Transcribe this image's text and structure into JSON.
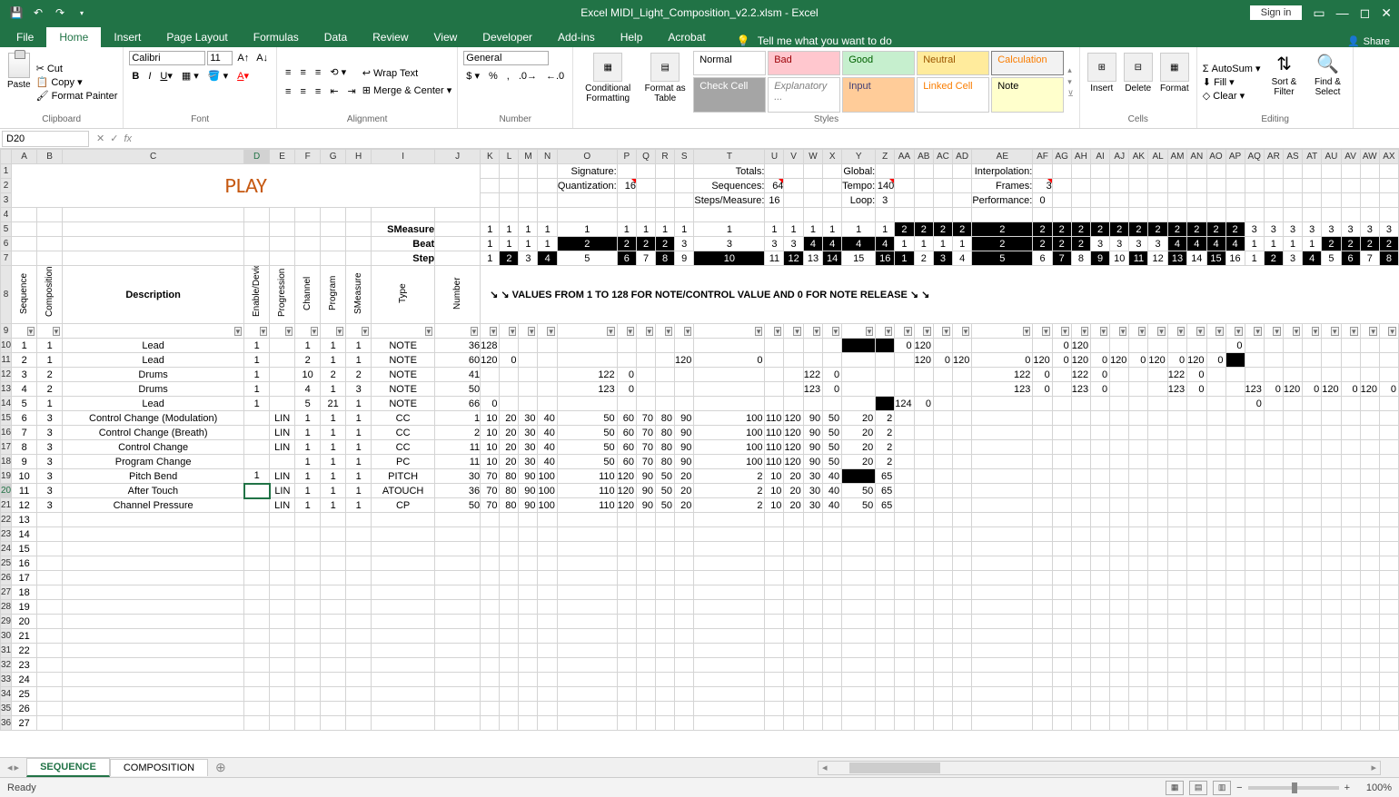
{
  "title": "Excel MIDI_Light_Composition_v2.2.xlsm - Excel",
  "signin": "Sign in",
  "tabs": {
    "file": "File",
    "home": "Home",
    "insert": "Insert",
    "page": "Page Layout",
    "formulas": "Formulas",
    "data": "Data",
    "review": "Review",
    "view": "View",
    "developer": "Developer",
    "addins": "Add-ins",
    "help": "Help",
    "acrobat": "Acrobat"
  },
  "tellme": "Tell me what you want to do",
  "share": "Share",
  "ribbon": {
    "clipboard": {
      "paste": "Paste",
      "cut": "Cut",
      "copy": "Copy",
      "painter": "Format Painter",
      "label": "Clipboard"
    },
    "font": {
      "name": "Calibri",
      "size": "11",
      "label": "Font"
    },
    "alignment": {
      "wrap": "Wrap Text",
      "merge": "Merge & Center",
      "label": "Alignment"
    },
    "number": {
      "format": "General",
      "label": "Number"
    },
    "styles": {
      "cond": "Conditional Formatting",
      "formatTable": "Format as Table",
      "cells": [
        "Normal",
        "Bad",
        "Good",
        "Neutral",
        "Calculation",
        "Check Cell",
        "Explanatory ...",
        "Input",
        "Linked Cell",
        "Note"
      ],
      "label": "Styles"
    },
    "cells": {
      "insert": "Insert",
      "delete": "Delete",
      "format": "Format",
      "label": "Cells"
    },
    "editing": {
      "autosum": "AutoSum",
      "fill": "Fill",
      "clear": "Clear",
      "sort": "Sort & Filter",
      "find": "Find & Select",
      "label": "Editing"
    }
  },
  "namebox": "D20",
  "columns": [
    "A",
    "B",
    "C",
    "D",
    "E",
    "F",
    "G",
    "H",
    "I",
    "J",
    "K",
    "L",
    "M",
    "N",
    "O",
    "P",
    "Q",
    "R",
    "S",
    "T",
    "U",
    "V",
    "W",
    "X",
    "Y",
    "Z",
    "AA",
    "AB",
    "AC",
    "AD",
    "AE",
    "AF",
    "AG",
    "AH",
    "AI",
    "AJ",
    "AK",
    "AL",
    "AM",
    "AN",
    "AO",
    "AP",
    "AQ",
    "AR",
    "AS",
    "AT",
    "AU",
    "AV",
    "AW",
    "AX",
    "AY",
    "AZ",
    "BA",
    "BB",
    "BC",
    "BD",
    "BE"
  ],
  "col_widths": {
    "A": 28,
    "B": 28,
    "C": 200,
    "D": 28,
    "E": 28,
    "F": 28,
    "G": 28,
    "H": 28,
    "I": 70,
    "J": 50,
    "def": 21
  },
  "header_labels": {
    "signature": "Signature:",
    "quantization": "Quantization:",
    "quantization_v": "16",
    "stepsmeasure": "Steps/Measure:",
    "stepsmeasure_v": "16",
    "totals": "Totals:",
    "sequences": "Sequences:",
    "sequences_v": "64",
    "global": "Global:",
    "tempo": "Tempo:",
    "tempo_v": "140",
    "loop": "Loop:",
    "loop_v": "3",
    "interpolation": "Interpolation:",
    "frames": "Frames:",
    "frames_v": "3",
    "performance": "Performance:",
    "performance_v": "0"
  },
  "row_hdrs": {
    "smeasure": "SMeasure",
    "beat": "Beat",
    "step": "Step"
  },
  "smeasure_vals": [
    1,
    1,
    1,
    1,
    1,
    1,
    1,
    1,
    1,
    1,
    1,
    1,
    1,
    1,
    1,
    1,
    2,
    2,
    2,
    2,
    2,
    2,
    2,
    2,
    2,
    2,
    2,
    2,
    2,
    2,
    2,
    2,
    3,
    3,
    3,
    3,
    3,
    3,
    3,
    3,
    3,
    3,
    3,
    3,
    3,
    3,
    3
  ],
  "beat_vals": [
    1,
    1,
    1,
    1,
    2,
    2,
    2,
    2,
    3,
    3,
    3,
    3,
    4,
    4,
    4,
    4,
    1,
    1,
    1,
    1,
    2,
    2,
    2,
    2,
    3,
    3,
    3,
    3,
    4,
    4,
    4,
    4,
    1,
    1,
    1,
    1,
    2,
    2,
    2,
    2,
    3,
    3,
    3,
    3,
    4,
    4,
    4
  ],
  "step_vals": [
    1,
    2,
    3,
    4,
    5,
    6,
    7,
    8,
    9,
    10,
    11,
    12,
    13,
    14,
    15,
    16,
    1,
    2,
    3,
    4,
    5,
    6,
    7,
    8,
    9,
    10,
    11,
    12,
    13,
    14,
    15,
    16,
    1,
    2,
    3,
    4,
    5,
    6,
    7,
    8,
    9,
    10,
    11,
    12,
    13,
    14,
    15
  ],
  "smeasure_black": [
    16,
    17,
    18,
    19,
    20,
    21,
    22,
    23,
    24,
    25,
    26,
    27,
    28,
    29,
    30,
    31
  ],
  "beat_black": [
    4,
    5,
    6,
    7,
    12,
    13,
    14,
    15,
    20,
    21,
    22,
    23,
    28,
    29,
    30,
    31,
    36,
    37,
    38,
    39,
    44,
    45,
    46
  ],
  "step_black": [
    1,
    3,
    5,
    7,
    9,
    11,
    13,
    15,
    16,
    18,
    20,
    22,
    24,
    26,
    28,
    30,
    33,
    35,
    37,
    39,
    41,
    43,
    45
  ],
  "col_headers": {
    "sequence": "Sequence",
    "composition": "Composition",
    "description": "Description",
    "enable": "Enable/Device",
    "progtype": "Progression Type",
    "channel": "Channel",
    "program": "Program",
    "smeasure": "SMeasure",
    "type": "Type",
    "number": "Number"
  },
  "values_hint": "↘ ↘ VALUES FROM 1 TO 128 FOR NOTE/CONTROL VALUE AND 0 FOR NOTE RELEASE ↘ ↘",
  "play": "PLAY",
  "data_rows": [
    {
      "r": 10,
      "a": 1,
      "b": 1,
      "c": "Lead",
      "d": 1,
      "e": "",
      "f": 1,
      "g": 1,
      "h": 1,
      "i": "NOTE",
      "j": 36,
      "vals": {
        "0": "128",
        "15": "",
        "16": "0",
        "17": "120",
        "22": "0",
        "23": "120",
        "31": "0"
      }
    },
    {
      "r": 11,
      "a": 2,
      "b": 1,
      "c": "Lead",
      "d": 1,
      "e": "",
      "f": 2,
      "g": 1,
      "h": 1,
      "i": "NOTE",
      "j": 60,
      "vals": {
        "0": "120",
        "1": "0",
        "8": "120",
        "9": "0",
        "17": "120",
        "18": "0",
        "19": "120",
        "20": "0",
        "21": "120",
        "22": "0",
        "23": "120",
        "24": "0",
        "25": "120",
        "26": "0",
        "27": "120",
        "28": "0",
        "29": "120",
        "30": "0",
        "31": ""
      }
    },
    {
      "r": 12,
      "a": 3,
      "b": 2,
      "c": "Drums",
      "d": 1,
      "e": "",
      "f": 10,
      "g": 2,
      "h": 2,
      "i": "NOTE",
      "j": 41,
      "vals": {
        "4": "122",
        "5": "0",
        "12": "122",
        "13": "0",
        "20": "122",
        "21": "0",
        "23": "122",
        "24": "0",
        "28": "122",
        "29": "0"
      }
    },
    {
      "r": 13,
      "a": 4,
      "b": 2,
      "c": "Drums",
      "d": 1,
      "e": "",
      "f": 4,
      "g": 1,
      "h": 3,
      "i": "NOTE",
      "j": 50,
      "vals": {
        "4": "123",
        "5": "0",
        "12": "123",
        "13": "0",
        "20": "123",
        "21": "0",
        "23": "123",
        "24": "0",
        "28": "123",
        "29": "0",
        "32": "123",
        "33": "0",
        "34": "120",
        "35": "0",
        "36": "120",
        "37": "0",
        "38": "120",
        "39": "0",
        "40": "120",
        "41": "0",
        "42": "120",
        "43": "0"
      }
    },
    {
      "r": 14,
      "a": 5,
      "b": 1,
      "c": "Lead",
      "d": 1,
      "e": "",
      "f": 5,
      "g": 21,
      "h": 1,
      "i": "NOTE",
      "j": 66,
      "vals": {
        "0": "0",
        "15": "",
        "16": "124",
        "17": "0",
        "32": "0"
      }
    },
    {
      "r": 15,
      "a": 6,
      "b": 3,
      "c": "Control Change (Modulation)",
      "d": "",
      "e": "LIN",
      "f": 1,
      "g": 1,
      "h": 1,
      "i": "CC",
      "j": 1,
      "vals": {
        "0": "10",
        "1": "20",
        "2": "30",
        "3": "40",
        "4": "50",
        "5": "60",
        "6": "70",
        "7": "80",
        "8": "90",
        "9": "100",
        "10": "110",
        "11": "120",
        "12": "90",
        "13": "50",
        "14": "20",
        "15": "2"
      }
    },
    {
      "r": 16,
      "a": 7,
      "b": 3,
      "c": "Control Change (Breath)",
      "d": "",
      "e": "LIN",
      "f": 1,
      "g": 1,
      "h": 1,
      "i": "CC",
      "j": 2,
      "vals": {
        "0": "10",
        "1": "20",
        "2": "30",
        "3": "40",
        "4": "50",
        "5": "60",
        "6": "70",
        "7": "80",
        "8": "90",
        "9": "100",
        "10": "110",
        "11": "120",
        "12": "90",
        "13": "50",
        "14": "20",
        "15": "2"
      }
    },
    {
      "r": 17,
      "a": 8,
      "b": 3,
      "c": "Control Change",
      "d": "",
      "e": "LIN",
      "f": 1,
      "g": 1,
      "h": 1,
      "i": "CC",
      "j": 11,
      "vals": {
        "0": "10",
        "1": "20",
        "2": "30",
        "3": "40",
        "4": "50",
        "5": "60",
        "6": "70",
        "7": "80",
        "8": "90",
        "9": "100",
        "10": "110",
        "11": "120",
        "12": "90",
        "13": "50",
        "14": "20",
        "15": "2"
      }
    },
    {
      "r": 18,
      "a": 9,
      "b": 3,
      "c": "Program Change",
      "d": "",
      "e": "",
      "f": 1,
      "g": 1,
      "h": 1,
      "i": "PC",
      "j": 11,
      "vals": {
        "0": "10",
        "1": "20",
        "2": "30",
        "3": "40",
        "4": "50",
        "5": "60",
        "6": "70",
        "7": "80",
        "8": "90",
        "9": "100",
        "10": "110",
        "11": "120",
        "12": "90",
        "13": "50",
        "14": "20",
        "15": "2"
      }
    },
    {
      "r": 19,
      "a": 10,
      "b": 3,
      "c": "Pitch Bend",
      "d": 1,
      "e": "LIN",
      "f": 1,
      "g": 1,
      "h": 1,
      "i": "PITCH",
      "j": 30,
      "vals": {
        "0": "70",
        "1": "80",
        "2": "90",
        "3": "100",
        "4": "110",
        "5": "120",
        "6": "90",
        "7": "50",
        "8": "20",
        "9": "2",
        "10": "10",
        "11": "20",
        "12": "30",
        "13": "40",
        "14": "",
        "15": "65"
      }
    },
    {
      "r": 20,
      "a": 11,
      "b": 3,
      "c": "After Touch",
      "d": "",
      "e": "LIN",
      "f": 1,
      "g": 1,
      "h": 1,
      "i": "ATOUCH",
      "j": 36,
      "vals": {
        "0": "70",
        "1": "80",
        "2": "90",
        "3": "100",
        "4": "110",
        "5": "120",
        "6": "90",
        "7": "50",
        "8": "20",
        "9": "2",
        "10": "10",
        "11": "20",
        "12": "30",
        "13": "40",
        "14": "50",
        "15": "65"
      }
    },
    {
      "r": 21,
      "a": 12,
      "b": 3,
      "c": "Channel Pressure",
      "d": "",
      "e": "LIN",
      "f": 1,
      "g": 1,
      "h": 1,
      "i": "CP",
      "j": 50,
      "vals": {
        "0": "70",
        "1": "80",
        "2": "90",
        "3": "100",
        "4": "110",
        "5": "120",
        "6": "90",
        "7": "50",
        "8": "20",
        "9": "2",
        "10": "10",
        "11": "20",
        "12": "30",
        "13": "40",
        "14": "50",
        "15": "65"
      }
    }
  ],
  "black_cells": {
    "10": [
      14,
      15
    ],
    "11": [
      31
    ],
    "14": [
      15
    ],
    "19": [
      14
    ],
    "13_far": [
      46
    ]
  },
  "empty_rows": [
    13,
    14,
    15,
    16,
    17,
    18,
    19,
    20,
    21,
    22,
    23,
    24,
    25,
    26,
    27
  ],
  "sheets": {
    "active": "SEQUENCE",
    "other": "COMPOSITION"
  },
  "status": "Ready",
  "zoom": "100%",
  "active_cell_col": "D",
  "colors": {
    "excel_green": "#217346",
    "play_color": "#c65911",
    "grid_border": "#d4d4d4",
    "header_bg": "#e6e6e6"
  }
}
